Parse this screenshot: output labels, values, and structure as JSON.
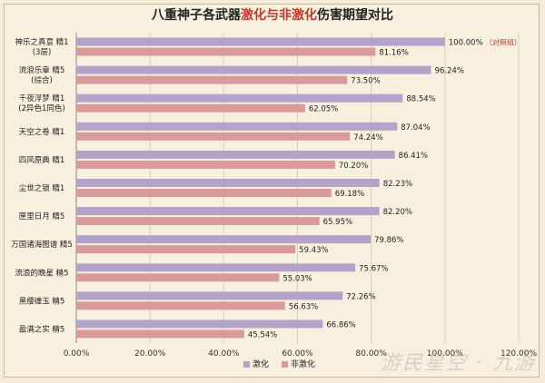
{
  "chart_data": {
    "type": "bar",
    "title_parts": [
      {
        "text": "八重神子各武器",
        "hl": false
      },
      {
        "text": "激化与非激化",
        "hl": true
      },
      {
        "text": "伤害期望对比",
        "hl": false
      }
    ],
    "categories": [
      [
        "神乐之真意 精1",
        "(3层)"
      ],
      [
        "流浪乐章 精5",
        "(综合)"
      ],
      [
        "千夜浮梦 精1",
        "(2异色1同色)"
      ],
      [
        "天空之卷 精1"
      ],
      [
        "四风原典 精1"
      ],
      [
        "尘世之锁 精1"
      ],
      [
        "匣里日月 精5"
      ],
      [
        "万国诸海图谱 精5"
      ],
      [
        "流浪的晚星 精5"
      ],
      [
        "黑缨缠玉 精5"
      ],
      [
        "盈满之实 精5"
      ]
    ],
    "series": [
      {
        "name": "激化",
        "color": "#b3a3c8",
        "values": [
          100.0,
          96.24,
          88.54,
          87.04,
          86.41,
          82.23,
          82.2,
          79.86,
          75.67,
          72.26,
          66.86
        ],
        "labels": [
          "100.00%",
          "96.24%",
          "88.54%",
          "87.04%",
          "86.41%",
          "82.23%",
          "82.20%",
          "79.86%",
          "75.67%",
          "72.26%",
          "66.86%"
        ]
      },
      {
        "name": "非激化",
        "color": "#d99a9a",
        "values": [
          81.16,
          73.5,
          62.05,
          74.24,
          70.2,
          69.18,
          65.95,
          59.43,
          55.03,
          56.63,
          45.54
        ],
        "labels": [
          "81.16%",
          "73.50%",
          "62.05%",
          "74.24%",
          "70.20%",
          "69.18%",
          "65.95%",
          "59.43%",
          "55.03%",
          "56.63%",
          "45.54%"
        ]
      }
    ],
    "annotation": {
      "category_index": 0,
      "text": "（对照组）",
      "color": "#c0392b"
    },
    "xlim": [
      0,
      120
    ],
    "xticks": [
      "0.00%",
      "20.00%",
      "40.00%",
      "60.00%",
      "80.00%",
      "100.00%",
      "120.00%"
    ],
    "grid": true,
    "legend_position": "bottom-center"
  },
  "watermark": "游民星空 · 九游"
}
